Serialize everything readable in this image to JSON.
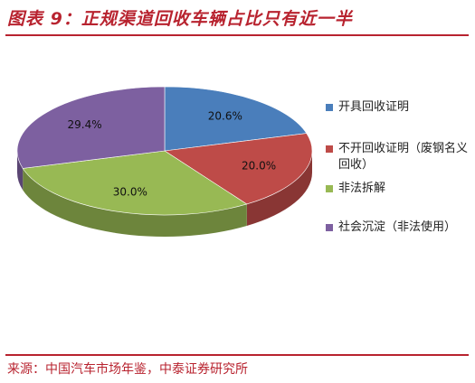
{
  "header": {
    "title": "图表 9：正规渠道回收车辆占比只有近一半"
  },
  "footer": {
    "source": "来源：中国汽车市场年鉴，中泰证券研究所"
  },
  "chart_data": {
    "type": "pie",
    "title": "",
    "style": "3d",
    "legend_position": "right",
    "unit": "%",
    "slices": [
      {
        "label": "开具回收证明",
        "value": 20.6,
        "value_label": "20.6%",
        "color": "#4a7ebb"
      },
      {
        "label": "不开回收证明（废钢名义回收）",
        "value": 20.0,
        "value_label": "20.0%",
        "color": "#be4b48"
      },
      {
        "label": "非法拆解",
        "value": 30.0,
        "value_label": "30.0%",
        "color": "#98b954"
      },
      {
        "label": "社会沉淀（非法使用）",
        "value": 29.4,
        "value_label": "29.4%",
        "color": "#7d60a0"
      }
    ]
  }
}
